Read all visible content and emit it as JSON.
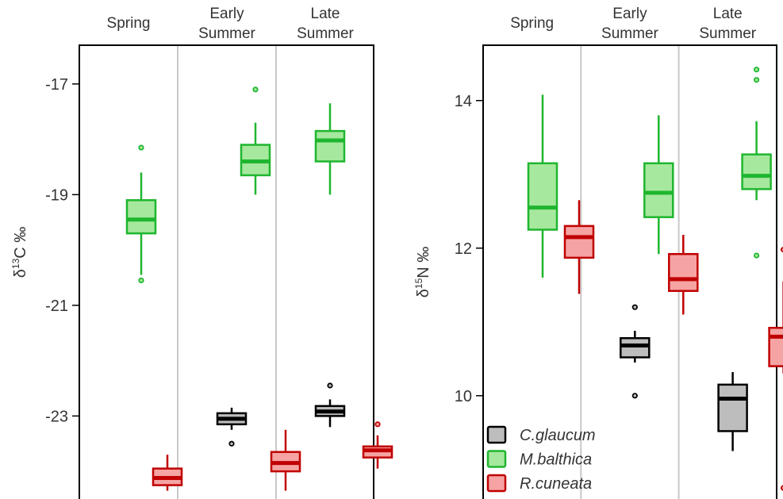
{
  "chart_data": [
    {
      "type": "box",
      "ylabel_main": "δ",
      "ylabel_sup": "13",
      "ylabel_rest": "C ‰",
      "ylim": [
        -24.5,
        -16.3
      ],
      "yticks": [
        -17,
        -19,
        -21,
        -23
      ],
      "panels": [
        {
          "label_lines": [
            "Spring"
          ]
        },
        {
          "label_lines": [
            "Early",
            "Summer"
          ]
        },
        {
          "label_lines": [
            "Late",
            "Summer"
          ]
        }
      ],
      "series": [
        {
          "species": "C.glaucum",
          "boxes": [
            null,
            {
              "whisker_low": -23.25,
              "q1": -23.15,
              "median": -23.05,
              "q3": -22.95,
              "whisker_high": -22.85,
              "outliers": [
                -23.5
              ]
            },
            {
              "whisker_low": -23.2,
              "q1": -23.0,
              "median": -22.92,
              "q3": -22.82,
              "whisker_high": -22.7,
              "outliers": [
                -22.45
              ]
            }
          ]
        },
        {
          "species": "M.balthica",
          "boxes": [
            {
              "whisker_low": -20.45,
              "q1": -19.7,
              "median": -19.45,
              "q3": -19.1,
              "whisker_high": -18.6,
              "outliers": [
                -18.15,
                -20.55
              ]
            },
            {
              "whisker_low": -19.0,
              "q1": -18.65,
              "median": -18.4,
              "q3": -18.1,
              "whisker_high": -17.7,
              "outliers": [
                -17.1
              ]
            },
            {
              "whisker_low": -19.0,
              "q1": -18.4,
              "median": -18.02,
              "q3": -17.85,
              "whisker_high": -17.35,
              "outliers": []
            }
          ]
        },
        {
          "species": "R.cuneata",
          "boxes": [
            {
              "whisker_low": -24.35,
              "q1": -24.25,
              "median": -24.12,
              "q3": -23.95,
              "whisker_high": -23.7,
              "outliers": []
            },
            {
              "whisker_low": -24.35,
              "q1": -24.0,
              "median": -23.85,
              "q3": -23.65,
              "whisker_high": -23.25,
              "outliers": []
            },
            {
              "whisker_low": -23.95,
              "q1": -23.75,
              "median": -23.62,
              "q3": -23.55,
              "whisker_high": -23.35,
              "outliers": [
                -23.15
              ]
            }
          ]
        }
      ]
    },
    {
      "type": "box",
      "ylabel_main": "δ",
      "ylabel_sup": "15",
      "ylabel_rest": "N ‰",
      "ylim": [
        8.6,
        14.75
      ],
      "yticks": [
        14,
        12,
        10
      ],
      "panels": [
        {
          "label_lines": [
            "Spring"
          ]
        },
        {
          "label_lines": [
            "Early",
            "Summer"
          ]
        },
        {
          "label_lines": [
            "Late",
            "Summer"
          ]
        }
      ],
      "series": [
        {
          "species": "C.glaucum",
          "boxes": [
            null,
            {
              "whisker_low": 10.45,
              "q1": 10.52,
              "median": 10.68,
              "q3": 10.78,
              "whisker_high": 10.88,
              "outliers": [
                11.2,
                10.0
              ]
            },
            {
              "whisker_low": 9.25,
              "q1": 9.52,
              "median": 9.96,
              "q3": 10.15,
              "whisker_high": 10.32,
              "outliers": []
            }
          ]
        },
        {
          "species": "M.balthica",
          "boxes": [
            {
              "whisker_low": 11.6,
              "q1": 12.25,
              "median": 12.55,
              "q3": 13.15,
              "whisker_high": 14.08,
              "outliers": []
            },
            {
              "whisker_low": 11.92,
              "q1": 12.42,
              "median": 12.75,
              "q3": 13.15,
              "whisker_high": 13.8,
              "outliers": []
            },
            {
              "whisker_low": 12.65,
              "q1": 12.8,
              "median": 12.98,
              "q3": 13.27,
              "whisker_high": 13.72,
              "outliers": [
                14.42,
                14.28,
                11.9
              ]
            }
          ]
        },
        {
          "species": "R.cuneata",
          "boxes": [
            {
              "whisker_low": 11.38,
              "q1": 11.87,
              "median": 12.15,
              "q3": 12.3,
              "whisker_high": 12.65,
              "outliers": []
            },
            {
              "whisker_low": 11.1,
              "q1": 11.42,
              "median": 11.58,
              "q3": 11.92,
              "whisker_high": 12.18,
              "outliers": []
            },
            {
              "whisker_low": 10.3,
              "q1": 10.4,
              "median": 10.8,
              "q3": 10.92,
              "whisker_high": 11.55,
              "outliers": [
                11.98,
                8.75
              ]
            }
          ]
        }
      ]
    }
  ],
  "legend": [
    {
      "species": "C.glaucum",
      "label": "C.glaucum"
    },
    {
      "species": "M.balthica",
      "label": "M.balthica"
    },
    {
      "species": "R.cuneata",
      "label": "R.cuneata"
    }
  ],
  "colors": {
    "C.glaucum": {
      "stroke": "#000000",
      "fill": "#bdbdbd"
    },
    "M.balthica": {
      "stroke": "#1fb62f",
      "fill": "#a6e89d"
    },
    "R.cuneata": {
      "stroke": "#c00000",
      "fill": "#f6a3a3"
    },
    "panel_divider": "#c8c8c8",
    "axis": "#000000"
  }
}
